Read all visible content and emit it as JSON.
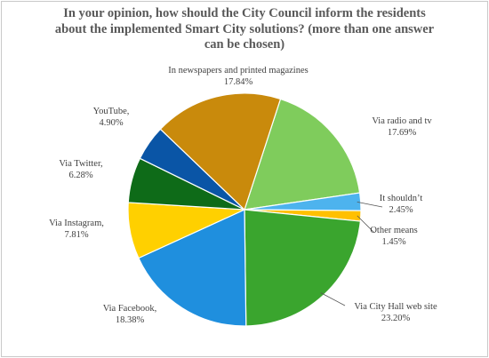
{
  "chart_data": {
    "type": "pie",
    "title": [
      "In your opinion, how should the City Council inform the residents",
      "about the implemented Smart City solutions? (more than one answer",
      "can be chosen)"
    ],
    "slices": [
      {
        "label": "Via radio and tv",
        "value": 17.69,
        "display": "17.69%",
        "color": "#7fcc5c"
      },
      {
        "label": "It shouldn’t",
        "value": 2.45,
        "display": "2.45%",
        "color": "#4db3ee"
      },
      {
        "label": "Other means",
        "value": 1.45,
        "display": "1.45%",
        "color": "#ffc000"
      },
      {
        "label": "Via City Hall web site",
        "value": 23.2,
        "display": "23.20%",
        "color": "#3aa52e"
      },
      {
        "label": "Via Facebook,",
        "value": 18.38,
        "display": "18.38%",
        "color": "#1f8fde"
      },
      {
        "label": "Via Instagram,",
        "value": 7.81,
        "display": "7.81%",
        "color": "#ffd000"
      },
      {
        "label": "Via Twitter,",
        "value": 6.28,
        "display": "6.28%",
        "color": "#0e6b18"
      },
      {
        "label": "YouTube,",
        "value": 4.9,
        "display": "4.90%",
        "color": "#0a55a6"
      },
      {
        "label": "In newspapers and printed magazines",
        "value": 17.84,
        "display": "17.84%",
        "color": "#c98a0c"
      }
    ],
    "start_angle_deg": 18,
    "direction": "clockwise",
    "legend": "none (callout labels)"
  }
}
